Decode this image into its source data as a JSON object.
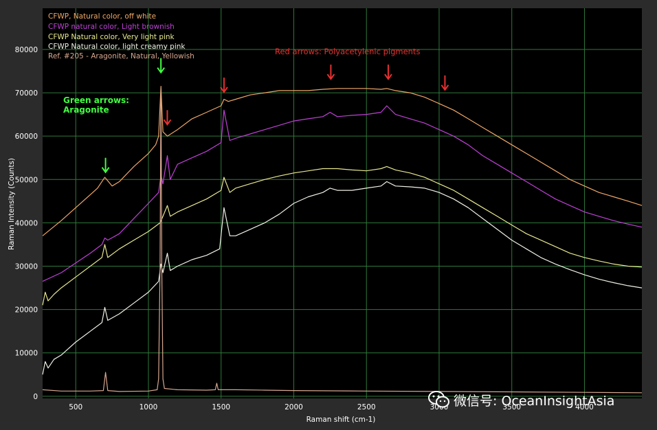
{
  "chart_data": {
    "type": "line",
    "xlabel": "Raman shift (cm-1)",
    "ylabel": "Raman Intensity (Counts)",
    "xlim": [
      272,
      4395
    ],
    "ylim": [
      -500,
      89500
    ],
    "x_ticks": [
      500,
      1000,
      1500,
      2000,
      2500,
      3000,
      3500,
      4000
    ],
    "y_ticks": [
      0,
      10000,
      20000,
      30000,
      40000,
      50000,
      60000,
      70000,
      80000
    ],
    "grid": true,
    "legend_position": "top-left",
    "series": [
      {
        "name": "CFWP, Natural color, off white",
        "color": "#f0a868",
        "x": [
          272,
          400,
          600,
          650,
          700,
          750,
          800,
          900,
          1000,
          1050,
          1070,
          1086,
          1100,
          1130,
          1200,
          1300,
          1400,
          1500,
          1520,
          1550,
          1600,
          1700,
          1800,
          1900,
          2000,
          2100,
          2200,
          2300,
          2400,
          2500,
          2600,
          2640,
          2700,
          2800,
          2900,
          3000,
          3100,
          3200,
          3300,
          3400,
          3500,
          3600,
          3700,
          3800,
          3900,
          4000,
          4100,
          4200,
          4300,
          4395
        ],
        "y": [
          37000,
          40500,
          46500,
          48000,
          50500,
          48500,
          49500,
          53000,
          56000,
          58000,
          60000,
          71500,
          61000,
          60000,
          61500,
          64000,
          65500,
          67000,
          68500,
          68000,
          68500,
          69500,
          70000,
          70500,
          70500,
          70500,
          70800,
          71000,
          71000,
          71000,
          70800,
          71000,
          70500,
          70000,
          69000,
          67500,
          66000,
          64000,
          62000,
          60000,
          58000,
          56000,
          54000,
          52000,
          50000,
          48500,
          47000,
          46000,
          45000,
          44000
        ]
      },
      {
        "name": "CFWP natural color, Light brownish",
        "color": "#c040d8",
        "x": [
          272,
          400,
          600,
          680,
          700,
          720,
          800,
          900,
          1000,
          1070,
          1086,
          1100,
          1130,
          1150,
          1200,
          1300,
          1400,
          1500,
          1520,
          1560,
          1600,
          1700,
          1800,
          1900,
          2000,
          2100,
          2200,
          2250,
          2300,
          2400,
          2500,
          2600,
          2640,
          2700,
          2800,
          2900,
          3000,
          3100,
          3200,
          3300,
          3400,
          3500,
          3600,
          3700,
          3800,
          3900,
          4000,
          4100,
          4200,
          4300,
          4395
        ],
        "y": [
          26500,
          28500,
          33000,
          35000,
          36500,
          36000,
          37500,
          41000,
          44500,
          47000,
          51000,
          49000,
          55500,
          50000,
          53500,
          55000,
          56500,
          58500,
          66000,
          59000,
          59500,
          60500,
          61500,
          62500,
          63500,
          64000,
          64500,
          65500,
          64500,
          64800,
          65000,
          65500,
          67000,
          65000,
          64000,
          63000,
          61500,
          60000,
          58000,
          55500,
          53500,
          51500,
          49500,
          47500,
          45500,
          44000,
          42500,
          41500,
          40500,
          39700,
          39000
        ]
      },
      {
        "name": "CFWP Natural color, Very light pink",
        "color": "#e8e890",
        "x": [
          272,
          290,
          310,
          350,
          400,
          500,
          600,
          680,
          700,
          720,
          800,
          900,
          1000,
          1080,
          1100,
          1130,
          1150,
          1200,
          1300,
          1400,
          1500,
          1520,
          1560,
          1600,
          1700,
          1800,
          1900,
          2000,
          2100,
          2200,
          2300,
          2400,
          2500,
          2600,
          2640,
          2700,
          2800,
          2900,
          3000,
          3100,
          3200,
          3300,
          3400,
          3500,
          3600,
          3700,
          3800,
          3900,
          4000,
          4100,
          4200,
          4300,
          4395
        ],
        "y": [
          21000,
          24000,
          22000,
          23500,
          25000,
          27500,
          30000,
          32000,
          35000,
          32000,
          34000,
          36000,
          38000,
          40000,
          41500,
          44000,
          41500,
          42500,
          44000,
          45500,
          47500,
          50500,
          47000,
          48000,
          49000,
          50000,
          50800,
          51500,
          52000,
          52500,
          52500,
          52200,
          52000,
          52500,
          53000,
          52200,
          51500,
          50500,
          49000,
          47500,
          45500,
          43500,
          41500,
          39500,
          37500,
          36000,
          34500,
          33000,
          32000,
          31200,
          30500,
          30000,
          29800
        ]
      },
      {
        "name": "CFWP Natural color, light creamy pink",
        "color": "#f2f2e8",
        "x": [
          272,
          290,
          310,
          350,
          400,
          500,
          600,
          680,
          700,
          720,
          800,
          900,
          1000,
          1070,
          1086,
          1100,
          1130,
          1150,
          1200,
          1300,
          1400,
          1490,
          1520,
          1560,
          1600,
          1700,
          1800,
          1900,
          2000,
          2100,
          2200,
          2250,
          2300,
          2400,
          2500,
          2600,
          2640,
          2700,
          2800,
          2900,
          3000,
          3100,
          3200,
          3300,
          3400,
          3500,
          3600,
          3700,
          3800,
          3900,
          4000,
          4100,
          4200,
          4300,
          4395
        ],
        "y": [
          5000,
          8000,
          6500,
          8500,
          9500,
          12500,
          15000,
          17000,
          20500,
          17500,
          19000,
          21500,
          24000,
          26500,
          30500,
          28500,
          33000,
          29000,
          30000,
          31500,
          32500,
          34000,
          43500,
          37000,
          37000,
          38500,
          40000,
          42000,
          44500,
          46000,
          47000,
          48000,
          47500,
          47500,
          48000,
          48500,
          49500,
          48500,
          48300,
          48000,
          47000,
          45500,
          43500,
          41000,
          38500,
          36000,
          34000,
          32000,
          30500,
          29200,
          28000,
          27000,
          26200,
          25500,
          25000
        ]
      },
      {
        "name": "Ref. #205 - Aragonite, Natural, Yellowish",
        "color": "#d8a890",
        "x": [
          272,
          400,
          600,
          690,
          705,
          720,
          800,
          1000,
          1060,
          1070,
          1080,
          1086,
          1092,
          1100,
          1110,
          1200,
          1400,
          1460,
          1470,
          1480,
          1600,
          1800,
          2000,
          2500,
          3000,
          3500,
          4000,
          4395
        ],
        "y": [
          1500,
          1200,
          1200,
          1300,
          5500,
          1300,
          1100,
          1200,
          1500,
          4000,
          30000,
          71000,
          30000,
          4000,
          1800,
          1500,
          1400,
          1500,
          3000,
          1500,
          1500,
          1400,
          1300,
          1200,
          1100,
          1000,
          900,
          800
        ]
      }
    ],
    "annotations": [
      {
        "text": "Green arrows:",
        "color": "#40ff40"
      },
      {
        "text": "Aragonite",
        "color": "#40ff40"
      },
      {
        "text": "Red arrows: Polyacetylenic pigments",
        "color": "#e83030"
      }
    ],
    "arrows": [
      {
        "x": 705,
        "y": 55000,
        "color": "#40ff40"
      },
      {
        "x": 1086,
        "y": 78000,
        "color": "#40ff40"
      },
      {
        "x": 1130,
        "y": 66000,
        "color": "#e83030"
      },
      {
        "x": 1520,
        "y": 73500,
        "color": "#e83030"
      },
      {
        "x": 2255,
        "y": 76500,
        "color": "#e83030"
      },
      {
        "x": 2650,
        "y": 76500,
        "color": "#e83030"
      },
      {
        "x": 3040,
        "y": 74000,
        "color": "#e83030"
      }
    ]
  },
  "watermark": {
    "text": "微信号: OceanInsightAsia"
  }
}
